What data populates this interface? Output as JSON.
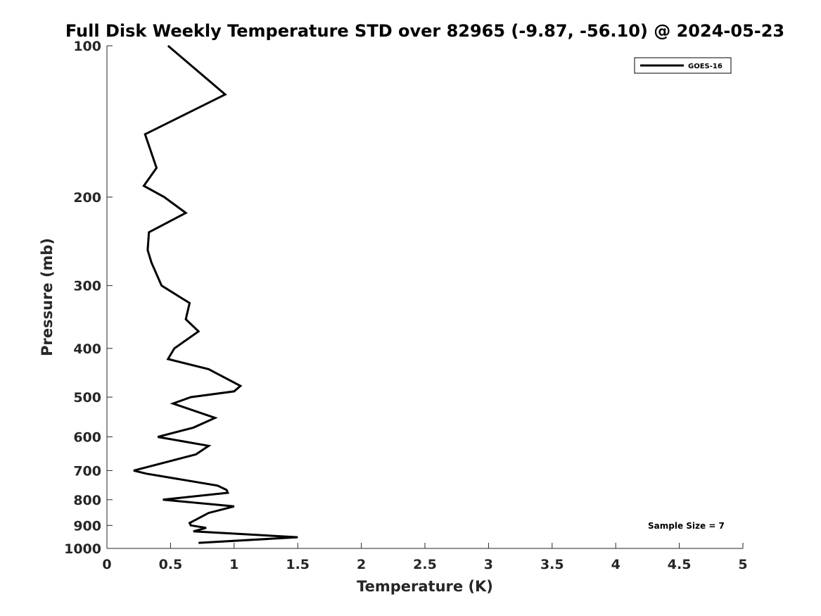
{
  "chart_data": {
    "type": "line",
    "title": "Full Disk Weekly Temperature STD over 82965 (-9.87, -56.10) @ 2024-05-23",
    "xlabel": "Temperature (K)",
    "ylabel": "Pressure (mb)",
    "xlim": [
      0,
      5
    ],
    "ylim": [
      100,
      1000
    ],
    "y_scale": "log",
    "y_reversed": true,
    "x_ticks": [
      "0",
      "0.5",
      "1",
      "1.5",
      "2",
      "2.5",
      "3",
      "3.5",
      "4",
      "4.5",
      "5"
    ],
    "y_ticks": [
      "100",
      "200",
      "300",
      "400",
      "500",
      "600",
      "700",
      "800",
      "900",
      "1000"
    ],
    "legend_position": "top-right",
    "grid": false,
    "annotation": "Sample Size = 7",
    "series": [
      {
        "name": "GOES-16",
        "color": "#000000",
        "points": [
          {
            "x": 0.48,
            "y": 100
          },
          {
            "x": 0.93,
            "y": 125
          },
          {
            "x": 0.3,
            "y": 150
          },
          {
            "x": 0.39,
            "y": 175
          },
          {
            "x": 0.29,
            "y": 190
          },
          {
            "x": 0.45,
            "y": 200
          },
          {
            "x": 0.62,
            "y": 215
          },
          {
            "x": 0.33,
            "y": 235
          },
          {
            "x": 0.32,
            "y": 255
          },
          {
            "x": 0.35,
            "y": 270
          },
          {
            "x": 0.43,
            "y": 300
          },
          {
            "x": 0.65,
            "y": 325
          },
          {
            "x": 0.62,
            "y": 350
          },
          {
            "x": 0.72,
            "y": 370
          },
          {
            "x": 0.53,
            "y": 400
          },
          {
            "x": 0.48,
            "y": 420
          },
          {
            "x": 0.8,
            "y": 440
          },
          {
            "x": 1.05,
            "y": 475
          },
          {
            "x": 1.0,
            "y": 487
          },
          {
            "x": 0.66,
            "y": 500
          },
          {
            "x": 0.52,
            "y": 515
          },
          {
            "x": 0.85,
            "y": 550
          },
          {
            "x": 0.68,
            "y": 575
          },
          {
            "x": 0.4,
            "y": 600
          },
          {
            "x": 0.8,
            "y": 625
          },
          {
            "x": 0.7,
            "y": 650
          },
          {
            "x": 0.21,
            "y": 700
          },
          {
            "x": 0.31,
            "y": 710
          },
          {
            "x": 0.87,
            "y": 750
          },
          {
            "x": 0.94,
            "y": 765
          },
          {
            "x": 0.95,
            "y": 775
          },
          {
            "x": 0.44,
            "y": 800
          },
          {
            "x": 1.0,
            "y": 825
          },
          {
            "x": 0.8,
            "y": 850
          },
          {
            "x": 0.65,
            "y": 890
          },
          {
            "x": 0.66,
            "y": 900
          },
          {
            "x": 0.78,
            "y": 910
          },
          {
            "x": 0.68,
            "y": 925
          },
          {
            "x": 1.5,
            "y": 950
          },
          {
            "x": 0.72,
            "y": 975
          }
        ]
      }
    ]
  }
}
